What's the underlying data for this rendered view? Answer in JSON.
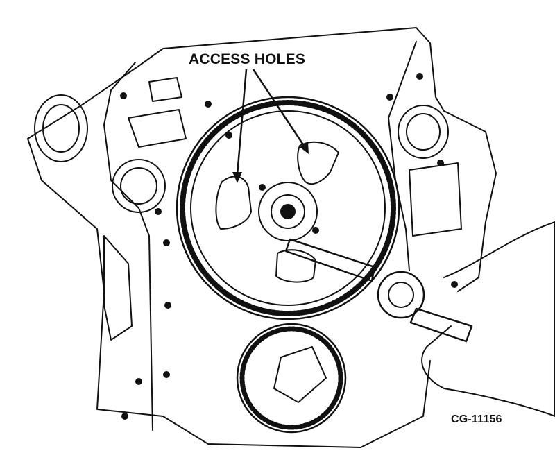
{
  "callout": {
    "text": "ACCESS HOLES"
  },
  "figure": {
    "id": "CG-11156"
  },
  "colors": {
    "ink": "#111111",
    "paper": "#ffffff"
  }
}
